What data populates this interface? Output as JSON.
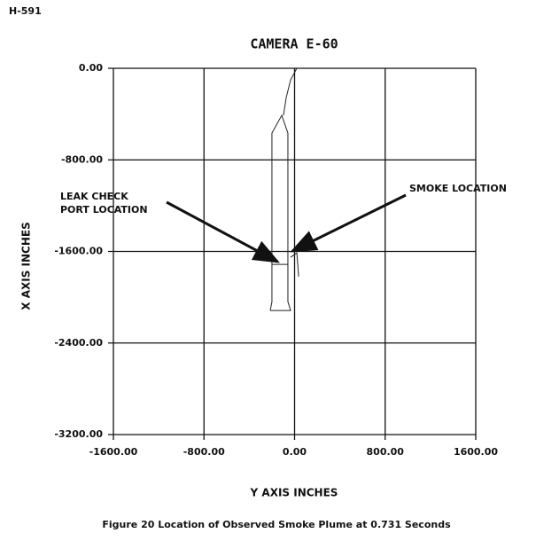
{
  "page_label": "H-591",
  "caption": "Figure 20 Location of Observed Smoke Plume at 0.731 Seconds",
  "chart_data": {
    "type": "line",
    "title": "CAMERA E-60",
    "xlabel": "Y AXIS INCHES",
    "ylabel": "X AXIS INCHES",
    "xlim": [
      -1600,
      1600
    ],
    "ylim": [
      -3200,
      0
    ],
    "xticks": [
      {
        "value": -1600,
        "label": "-1600.00"
      },
      {
        "value": -800,
        "label": "-800.00"
      },
      {
        "value": 0,
        "label": "0.00"
      },
      {
        "value": 800,
        "label": "800.00"
      },
      {
        "value": 1600,
        "label": "1600.00"
      }
    ],
    "yticks": [
      {
        "value": 0,
        "label": "0.00"
      },
      {
        "value": -800,
        "label": "-800.00"
      },
      {
        "value": -1600,
        "label": "-1600.00"
      },
      {
        "value": -2400,
        "label": "-2400.00"
      },
      {
        "value": -3200,
        "label": "-3200.00"
      }
    ],
    "grid": true,
    "series": [
      {
        "color": "#222222",
        "x": [
          -215,
          -200,
          -200,
          -113,
          -59,
          -59,
          -35,
          -215,
          null,
          20,
          -35,
          -74,
          -98,
          null,
          -200,
          -59,
          null,
          -35,
          20,
          35,
          35
        ],
        "values": [
          -2116,
          -2039,
          -566,
          -411,
          -566,
          -2039,
          -2116,
          -2116,
          null,
          0,
          -101,
          -256,
          -411,
          null,
          -1713,
          -1713,
          null,
          -1651,
          -1612,
          -1806,
          -1820
        ]
      }
    ],
    "annotations": [
      {
        "text": [
          "LEAK CHECK",
          "PORT LOCATION"
        ],
        "x": -150,
        "y": -1690
      },
      {
        "text": [
          "SMOKE LOCATION"
        ],
        "x": -20,
        "y": -1597
      }
    ]
  }
}
